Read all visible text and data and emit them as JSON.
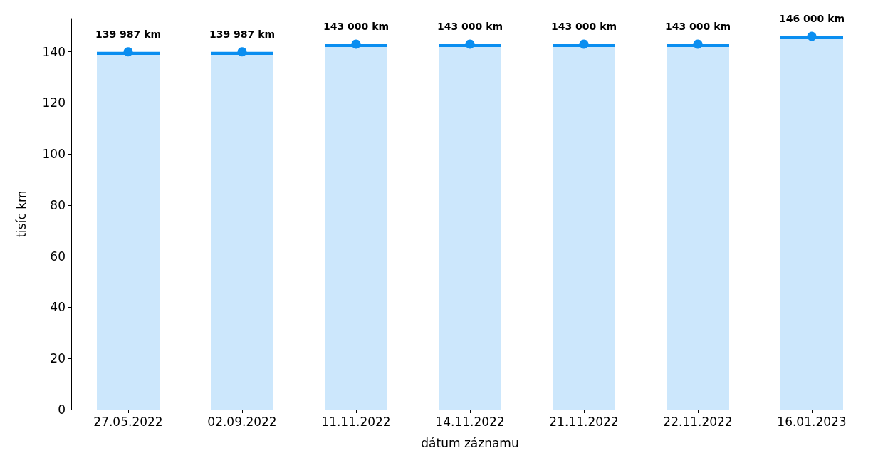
{
  "chart_data": {
    "type": "bar",
    "xlabel": "dátum záznamu",
    "ylabel": "tisíc km",
    "categories": [
      "27.05.2022",
      "02.09.2022",
      "11.11.2022",
      "14.11.2022",
      "21.11.2022",
      "22.11.2022",
      "16.01.2023"
    ],
    "ylim": [
      0,
      153
    ],
    "yticks": [
      0,
      20,
      40,
      60,
      80,
      100,
      120,
      140
    ],
    "marker": "circle",
    "series": [
      {
        "color": "#cce7fc",
        "values": [
          139.987,
          139.987,
          143,
          143,
          143,
          143,
          146
        ]
      },
      {
        "type": "scatter",
        "color": "#0a8ef0",
        "values": [
          139.987,
          139.987,
          143,
          143,
          143,
          143,
          146
        ]
      }
    ],
    "annotations": [
      {
        "text": "139 987 km",
        "x": "27.05.2022",
        "y": 139.987
      },
      {
        "text": "139 987 km",
        "x": "02.09.2022",
        "y": 139.987
      },
      {
        "text": "143 000 km",
        "x": "11.11.2022",
        "y": 143
      },
      {
        "text": "143 000 km",
        "x": "14.11.2022",
        "y": 143
      },
      {
        "text": "143 000 km",
        "x": "21.11.2022",
        "y": 143
      },
      {
        "text": "143 000 km",
        "x": "22.11.2022",
        "y": 143
      },
      {
        "text": "146 000 km",
        "x": "16.01.2023",
        "y": 146
      }
    ]
  }
}
